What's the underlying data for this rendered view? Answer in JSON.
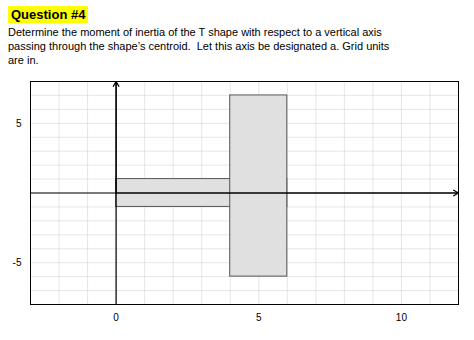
{
  "chart_data": {
    "type": "rect",
    "title": "Question #4",
    "subtitle": [
      "Determine the moment of inertia of the T shape with respect to a vertical axis",
      "passing through the shape’s centroid.  Let this axis be designated a. Grid units",
      "are in."
    ],
    "rects": [
      {
        "x": 0,
        "y": -1,
        "width": 6,
        "height": 2
      },
      {
        "x": 4,
        "y": -6,
        "width": 2,
        "height": 13
      }
    ],
    "color": "#e0e0e0",
    "xlim": [
      -3,
      12
    ],
    "ylim": [
      -8,
      8
    ],
    "xticks": [
      0,
      5,
      10
    ],
    "yticks": [
      -5,
      5
    ],
    "grid": true
  }
}
